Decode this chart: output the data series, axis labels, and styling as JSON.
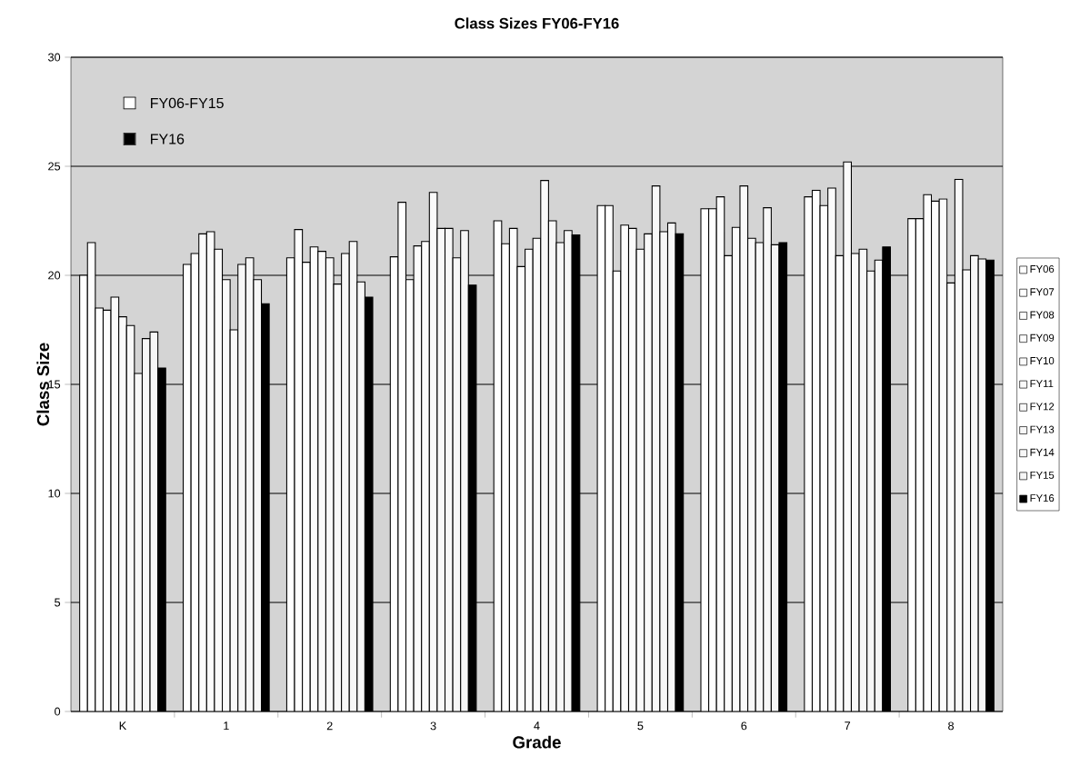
{
  "chart_data": {
    "type": "bar",
    "title": "Class Sizes FY06-FY16",
    "xlabel": "Grade",
    "ylabel": "Class Size",
    "categories": [
      "K",
      "1",
      "2",
      "3",
      "4",
      "5",
      "6",
      "7",
      "8"
    ],
    "series": [
      {
        "name": "FY06",
        "color": "#ffffff",
        "values": [
          20.0,
          20.5,
          20.8,
          20.85,
          22.5,
          23.2,
          23.05,
          23.6,
          22.6
        ]
      },
      {
        "name": "FY07",
        "color": "#fefefe",
        "values": [
          21.5,
          21.0,
          22.1,
          23.35,
          21.45,
          23.2,
          23.05,
          23.9,
          22.6
        ]
      },
      {
        "name": "FY08",
        "color": "#fdfdfd",
        "values": [
          18.5,
          21.9,
          20.6,
          19.8,
          22.15,
          20.2,
          23.6,
          23.2,
          23.7
        ]
      },
      {
        "name": "FY09",
        "color": "#fcfcfc",
        "values": [
          18.4,
          22.0,
          21.3,
          21.35,
          20.4,
          22.3,
          20.9,
          24.0,
          23.4
        ]
      },
      {
        "name": "FY10",
        "color": "#fbfbfb",
        "values": [
          19.0,
          21.2,
          21.1,
          21.55,
          21.2,
          22.15,
          22.2,
          20.9,
          23.5
        ]
      },
      {
        "name": "FY11",
        "color": "#fafafa",
        "values": [
          18.1,
          19.8,
          20.8,
          23.8,
          21.7,
          21.2,
          24.1,
          25.2,
          19.65
        ]
      },
      {
        "name": "FY12",
        "color": "#f9f9f9",
        "values": [
          17.7,
          17.5,
          19.6,
          22.15,
          24.35,
          21.9,
          21.7,
          21.0,
          24.4
        ]
      },
      {
        "name": "FY13",
        "color": "#f8f8f8",
        "values": [
          15.5,
          20.5,
          21.0,
          22.15,
          22.5,
          24.1,
          21.5,
          21.2,
          20.25
        ]
      },
      {
        "name": "FY14",
        "color": "#f7f7f7",
        "values": [
          17.1,
          20.8,
          21.55,
          20.8,
          21.5,
          22.0,
          23.1,
          20.2,
          20.9
        ]
      },
      {
        "name": "FY15",
        "color": "#f6f6f6",
        "values": [
          17.4,
          19.8,
          19.7,
          22.05,
          22.05,
          22.4,
          21.4,
          20.7,
          20.75
        ]
      },
      {
        "name": "FY16",
        "color": "#000000",
        "values": [
          15.75,
          18.7,
          19.0,
          19.55,
          21.85,
          21.9,
          21.5,
          21.3,
          20.7
        ]
      }
    ],
    "ylim": [
      0,
      30
    ],
    "yticks": [
      0,
      5,
      10,
      15,
      20,
      25,
      30
    ],
    "grid": "y",
    "legend": "right",
    "annotations": [
      "FY06-FY15",
      "FY16"
    ]
  }
}
